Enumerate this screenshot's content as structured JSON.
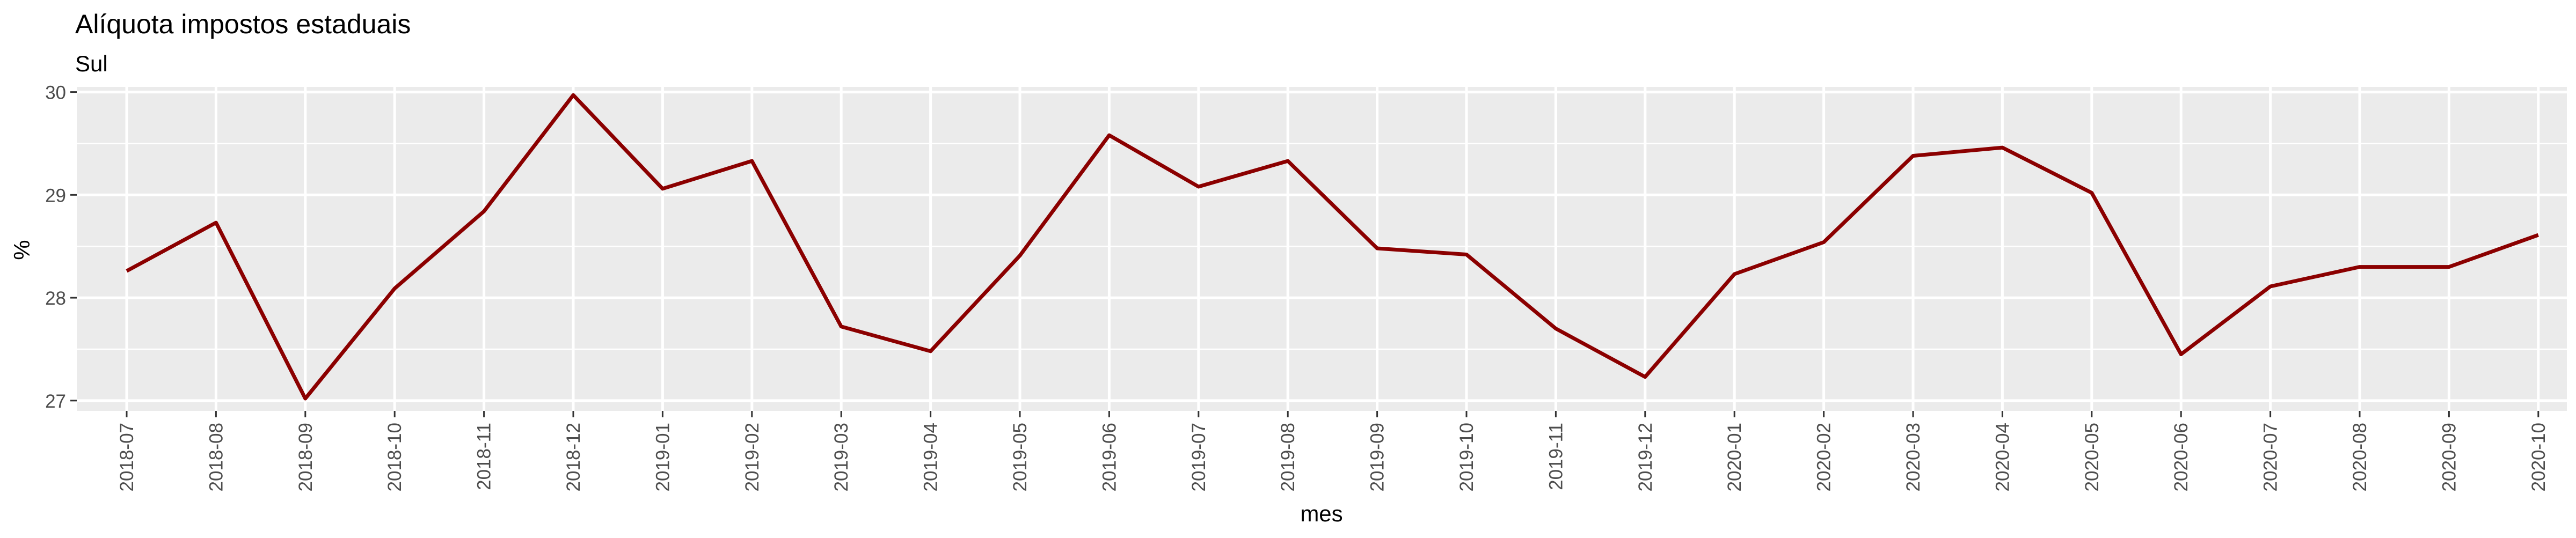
{
  "chart_data": {
    "type": "line",
    "title": "Alíquota impostos estaduais",
    "subtitle": "Sul",
    "xlabel": "mes",
    "ylabel": "%",
    "ylim": [
      26.9,
      30.05
    ],
    "yticks": [
      27,
      28,
      29,
      30
    ],
    "grid": true,
    "legend": "none",
    "line_color": "#8b0000",
    "panel_bg": "#ebebeb",
    "grid_color": "#ffffff",
    "categories": [
      "2018-07",
      "2018-08",
      "2018-09",
      "2018-10",
      "2018-11",
      "2018-12",
      "2019-01",
      "2019-02",
      "2019-03",
      "2019-04",
      "2019-05",
      "2019-06",
      "2019-07",
      "2019-08",
      "2019-09",
      "2019-10",
      "2019-11",
      "2019-12",
      "2020-01",
      "2020-02",
      "2020-03",
      "2020-04",
      "2020-05",
      "2020-06",
      "2020-07",
      "2020-08",
      "2020-09",
      "2020-10"
    ],
    "series": [
      {
        "values": [
          28.26,
          28.73,
          27.02,
          28.09,
          28.84,
          29.97,
          29.06,
          29.33,
          27.72,
          27.48,
          28.41,
          29.58,
          29.08,
          29.33,
          28.48,
          28.42,
          27.7,
          27.23,
          28.23,
          28.54,
          29.38,
          29.46,
          29.02,
          27.45,
          28.11,
          28.3,
          28.3,
          28.61
        ]
      }
    ]
  }
}
